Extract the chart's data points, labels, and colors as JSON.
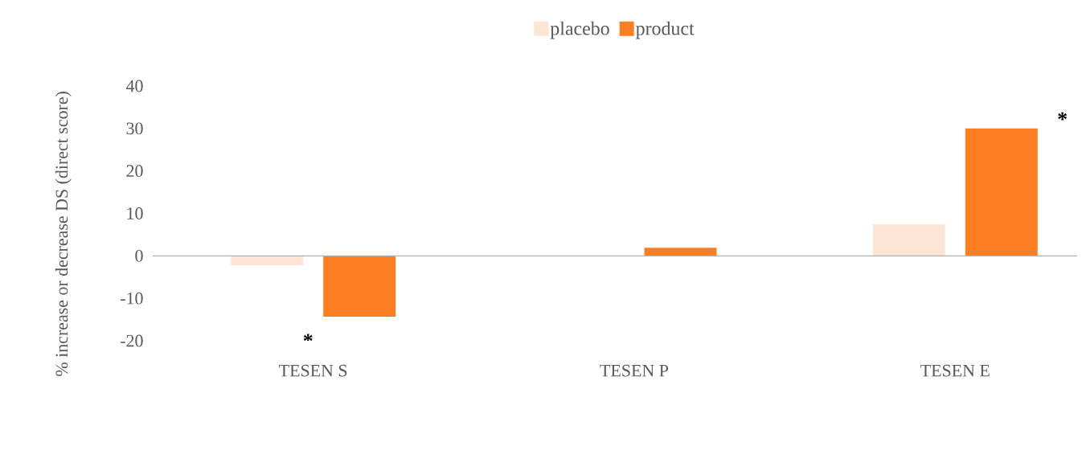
{
  "chart_data": {
    "type": "bar",
    "ylabel": "% increase or decrease DS (direct score)",
    "categories": [
      "TESEN S",
      "TESEN P",
      "TESEN E"
    ],
    "series": [
      {
        "name": "placebo",
        "color": "#fde5d6",
        "values": [
          -2.2,
          null,
          7.4
        ]
      },
      {
        "name": "product",
        "color": "#fd7f24",
        "values": [
          -14.3,
          1.9,
          30
        ]
      }
    ],
    "ylim": [
      -20,
      40
    ],
    "yticks": [
      -20,
      -10,
      0,
      10,
      20,
      30,
      40
    ],
    "legend": "top",
    "annotations": [
      "*",
      "*"
    ]
  }
}
